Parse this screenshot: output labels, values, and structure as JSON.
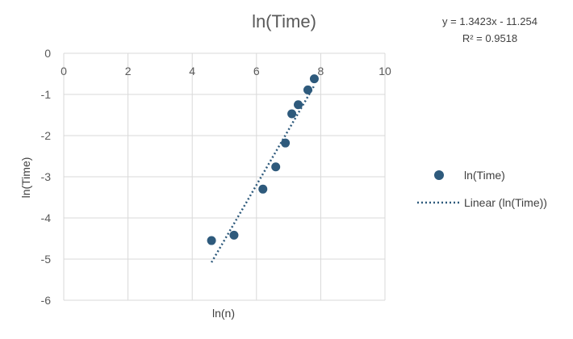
{
  "chart_data": {
    "type": "scatter",
    "title": "ln(Time)",
    "xlabel": "ln(n)",
    "ylabel": "ln(Time)",
    "xlim": [
      0,
      10
    ],
    "ylim": [
      -6,
      0
    ],
    "xticks": [
      0,
      2,
      4,
      6,
      8,
      10
    ],
    "yticks": [
      0,
      -1,
      -2,
      -3,
      -4,
      -5,
      -6
    ],
    "grid": true,
    "legend_position": "right",
    "series": [
      {
        "name": "ln(Time)",
        "color": "#2E5A7C",
        "points": [
          {
            "x": 4.6,
            "y": -4.55
          },
          {
            "x": 5.3,
            "y": -4.42
          },
          {
            "x": 6.2,
            "y": -3.3
          },
          {
            "x": 6.6,
            "y": -2.76
          },
          {
            "x": 6.9,
            "y": -2.18
          },
          {
            "x": 7.1,
            "y": -1.47
          },
          {
            "x": 7.3,
            "y": -1.25
          },
          {
            "x": 7.6,
            "y": -0.89
          },
          {
            "x": 7.8,
            "y": -0.62
          }
        ]
      }
    ],
    "trendline": {
      "name": "Linear (ln(Time))",
      "type": "linear",
      "slope": 1.3423,
      "intercept": -11.254,
      "x_range": [
        4.6,
        7.8
      ],
      "color": "#2E5A7C",
      "equation_text": "y = 1.3423x - 11.254",
      "r2_text": "R² = 0.9518"
    }
  }
}
